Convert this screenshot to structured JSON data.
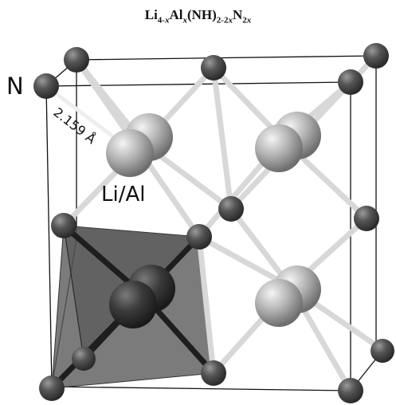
{
  "title": {
    "base1": "Li",
    "sub1": "4-",
    "sub1_var": "x",
    "base2": "Al",
    "sub2_var": "x",
    "base3": "(NH)",
    "sub3": "2-2",
    "sub3_var": "x",
    "base4": "N",
    "sub4": "2",
    "sub4_var": "x"
  },
  "labels": {
    "nitrogen": "N",
    "bond_length": "2.159 Å",
    "cation_site": "Li/Al"
  },
  "colors": {
    "n_atom": "#4a4a4a",
    "cation_atom": "#a8a8a8",
    "bond": "#d6d6d6",
    "tetrahedron": "#5a5a5a",
    "cell_edge": "#111111"
  }
}
